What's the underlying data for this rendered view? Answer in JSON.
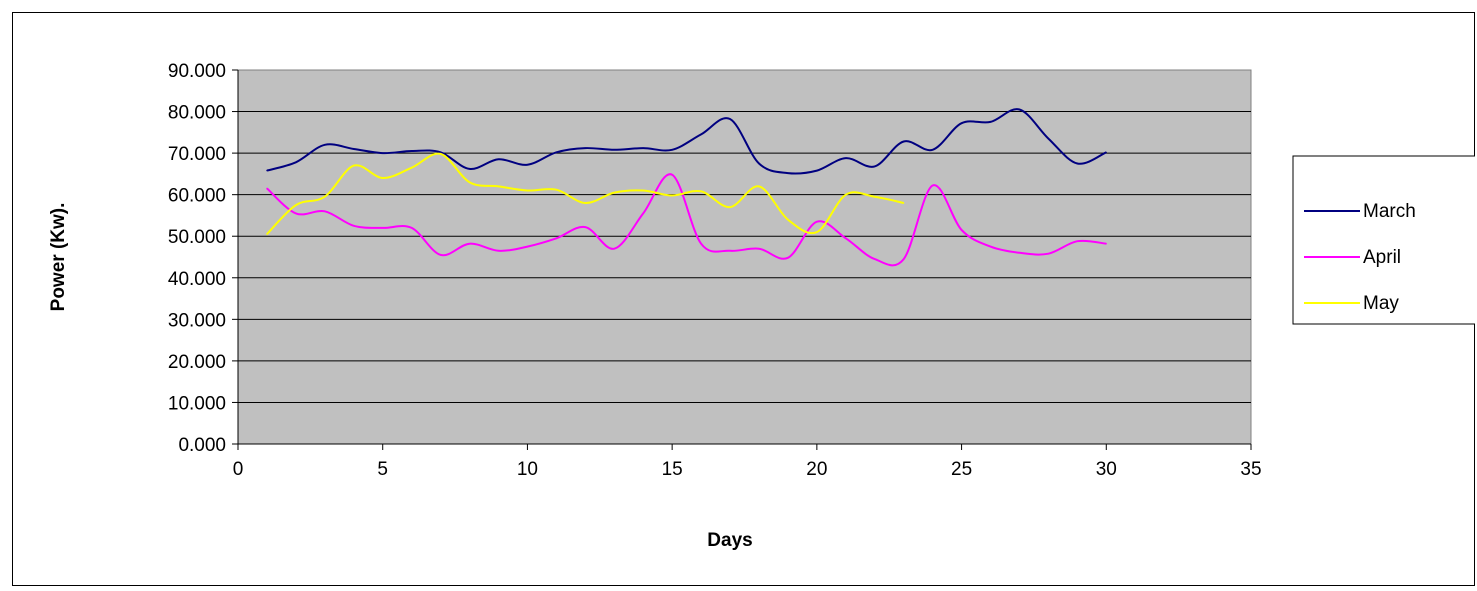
{
  "chart_data": {
    "type": "line",
    "title": "",
    "xlabel": "Days",
    "ylabel": "Power (Kw).",
    "xlim": [
      0,
      35
    ],
    "ylim": [
      0,
      90
    ],
    "x_ticks": [
      "0",
      "5",
      "10",
      "15",
      "20",
      "25",
      "30",
      "35"
    ],
    "y_ticks": [
      "0.000",
      "10.000",
      "20.000",
      "30.000",
      "40.000",
      "50.000",
      "60.000",
      "70.000",
      "80.000",
      "90.000"
    ],
    "grid": "horizontal",
    "plot_background": "#c0c0c0",
    "legend_position": "right",
    "series": [
      {
        "name": "March",
        "color": "#000080",
        "x": [
          1,
          2,
          3,
          4,
          5,
          6,
          7,
          8,
          9,
          10,
          11,
          12,
          13,
          14,
          15,
          16,
          17,
          18,
          19,
          20,
          21,
          22,
          23,
          24,
          25,
          26,
          27,
          28,
          29,
          30
        ],
        "values": [
          65.8,
          67.8,
          72.0,
          71.0,
          70.0,
          70.5,
          70.2,
          66.2,
          68.5,
          67.2,
          70.2,
          71.2,
          70.8,
          71.2,
          70.8,
          74.5,
          78.2,
          67.5,
          65.2,
          65.8,
          68.8,
          66.8,
          72.8,
          70.8,
          77.2,
          77.5,
          80.5,
          73.5,
          67.5,
          70.2
        ]
      },
      {
        "name": "April",
        "color": "#ff00ff",
        "x": [
          1,
          2,
          3,
          4,
          5,
          6,
          7,
          8,
          9,
          10,
          11,
          12,
          13,
          14,
          15,
          16,
          17,
          18,
          19,
          20,
          21,
          22,
          23,
          24,
          25,
          26,
          27,
          28,
          29,
          30
        ],
        "values": [
          61.5,
          55.5,
          56.0,
          52.5,
          52.0,
          52.0,
          45.5,
          48.2,
          46.5,
          47.5,
          49.5,
          52.2,
          47.0,
          55.5,
          64.8,
          48.2,
          46.5,
          47.0,
          44.8,
          53.5,
          49.5,
          44.5,
          44.5,
          62.2,
          51.5,
          47.5,
          46.0,
          45.8,
          48.8,
          48.2
        ]
      },
      {
        "name": "May",
        "color": "#ffff00",
        "x": [
          1,
          2,
          3,
          4,
          5,
          6,
          7,
          8,
          9,
          10,
          11,
          12,
          13,
          14,
          15,
          16,
          17,
          18,
          19,
          20,
          21,
          22,
          23
        ],
        "values": [
          50.5,
          57.5,
          59.5,
          67.0,
          64.0,
          66.5,
          69.8,
          63.0,
          62.0,
          61.0,
          61.2,
          58.0,
          60.5,
          61.0,
          59.8,
          60.8,
          57.0,
          62.0,
          54.0,
          51.0,
          60.0,
          59.5,
          58.0
        ]
      }
    ]
  }
}
